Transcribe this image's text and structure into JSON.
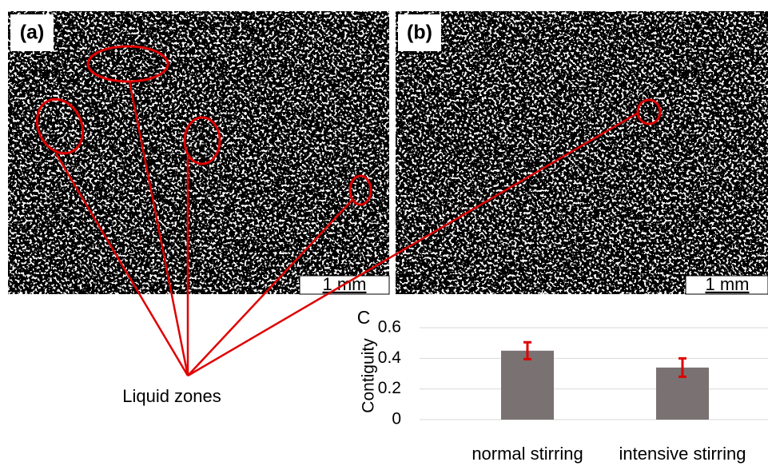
{
  "panels": [
    {
      "label": "(a)",
      "scale_bar": "1 mm"
    },
    {
      "label": "(b)",
      "scale_bar": "1 mm"
    }
  ],
  "annotation": "Liquid zones",
  "chart_data": {
    "type": "bar",
    "panel_label": "C",
    "y_label": "Contiguity",
    "categories": [
      "normal stirring",
      "intensive stirring"
    ],
    "values": [
      0.45,
      0.34
    ],
    "errors": [
      0.055,
      0.06
    ],
    "color": "#7a7272",
    "error_color": "#e00000",
    "ylim": [
      0,
      0.6
    ],
    "yticks": [
      0,
      0.2,
      0.4,
      0.6
    ],
    "grid": true
  }
}
